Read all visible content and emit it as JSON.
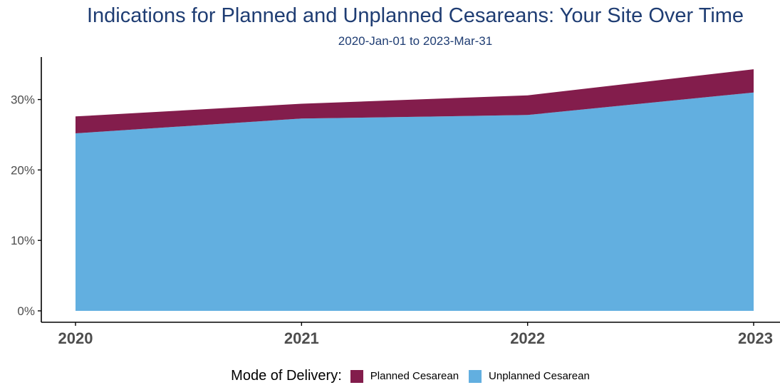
{
  "chart_data": {
    "type": "area",
    "stacked": true,
    "title": "Indications for Planned and Unplanned Cesareans: Your Site Over Time",
    "subtitle": "2020-Jan-01 to 2023-Mar-31",
    "xlabel": "",
    "ylabel": "",
    "x": [
      2020,
      2021,
      2022,
      2023
    ],
    "ylim": [
      0,
      35
    ],
    "yticks": [
      0,
      10,
      20,
      30
    ],
    "ytick_labels": [
      "0%",
      "10%",
      "20%",
      "30%"
    ],
    "xtick_labels": [
      "2020",
      "2021",
      "2022",
      "2023"
    ],
    "grid": false,
    "series": [
      {
        "name": "Unplanned Cesarean",
        "color": "#62afe0",
        "values": [
          25.2,
          27.3,
          27.8,
          31.0
        ]
      },
      {
        "name": "Planned Cesarean",
        "color": "#831d4c",
        "values": [
          2.4,
          2.1,
          2.8,
          3.3
        ]
      }
    ],
    "legend": {
      "title": "Mode of Delivery:",
      "position": "bottom",
      "entries": [
        {
          "label": "Planned Cesarean",
          "color": "#831d4c"
        },
        {
          "label": "Unplanned Cesarean",
          "color": "#62afe0"
        }
      ]
    }
  }
}
